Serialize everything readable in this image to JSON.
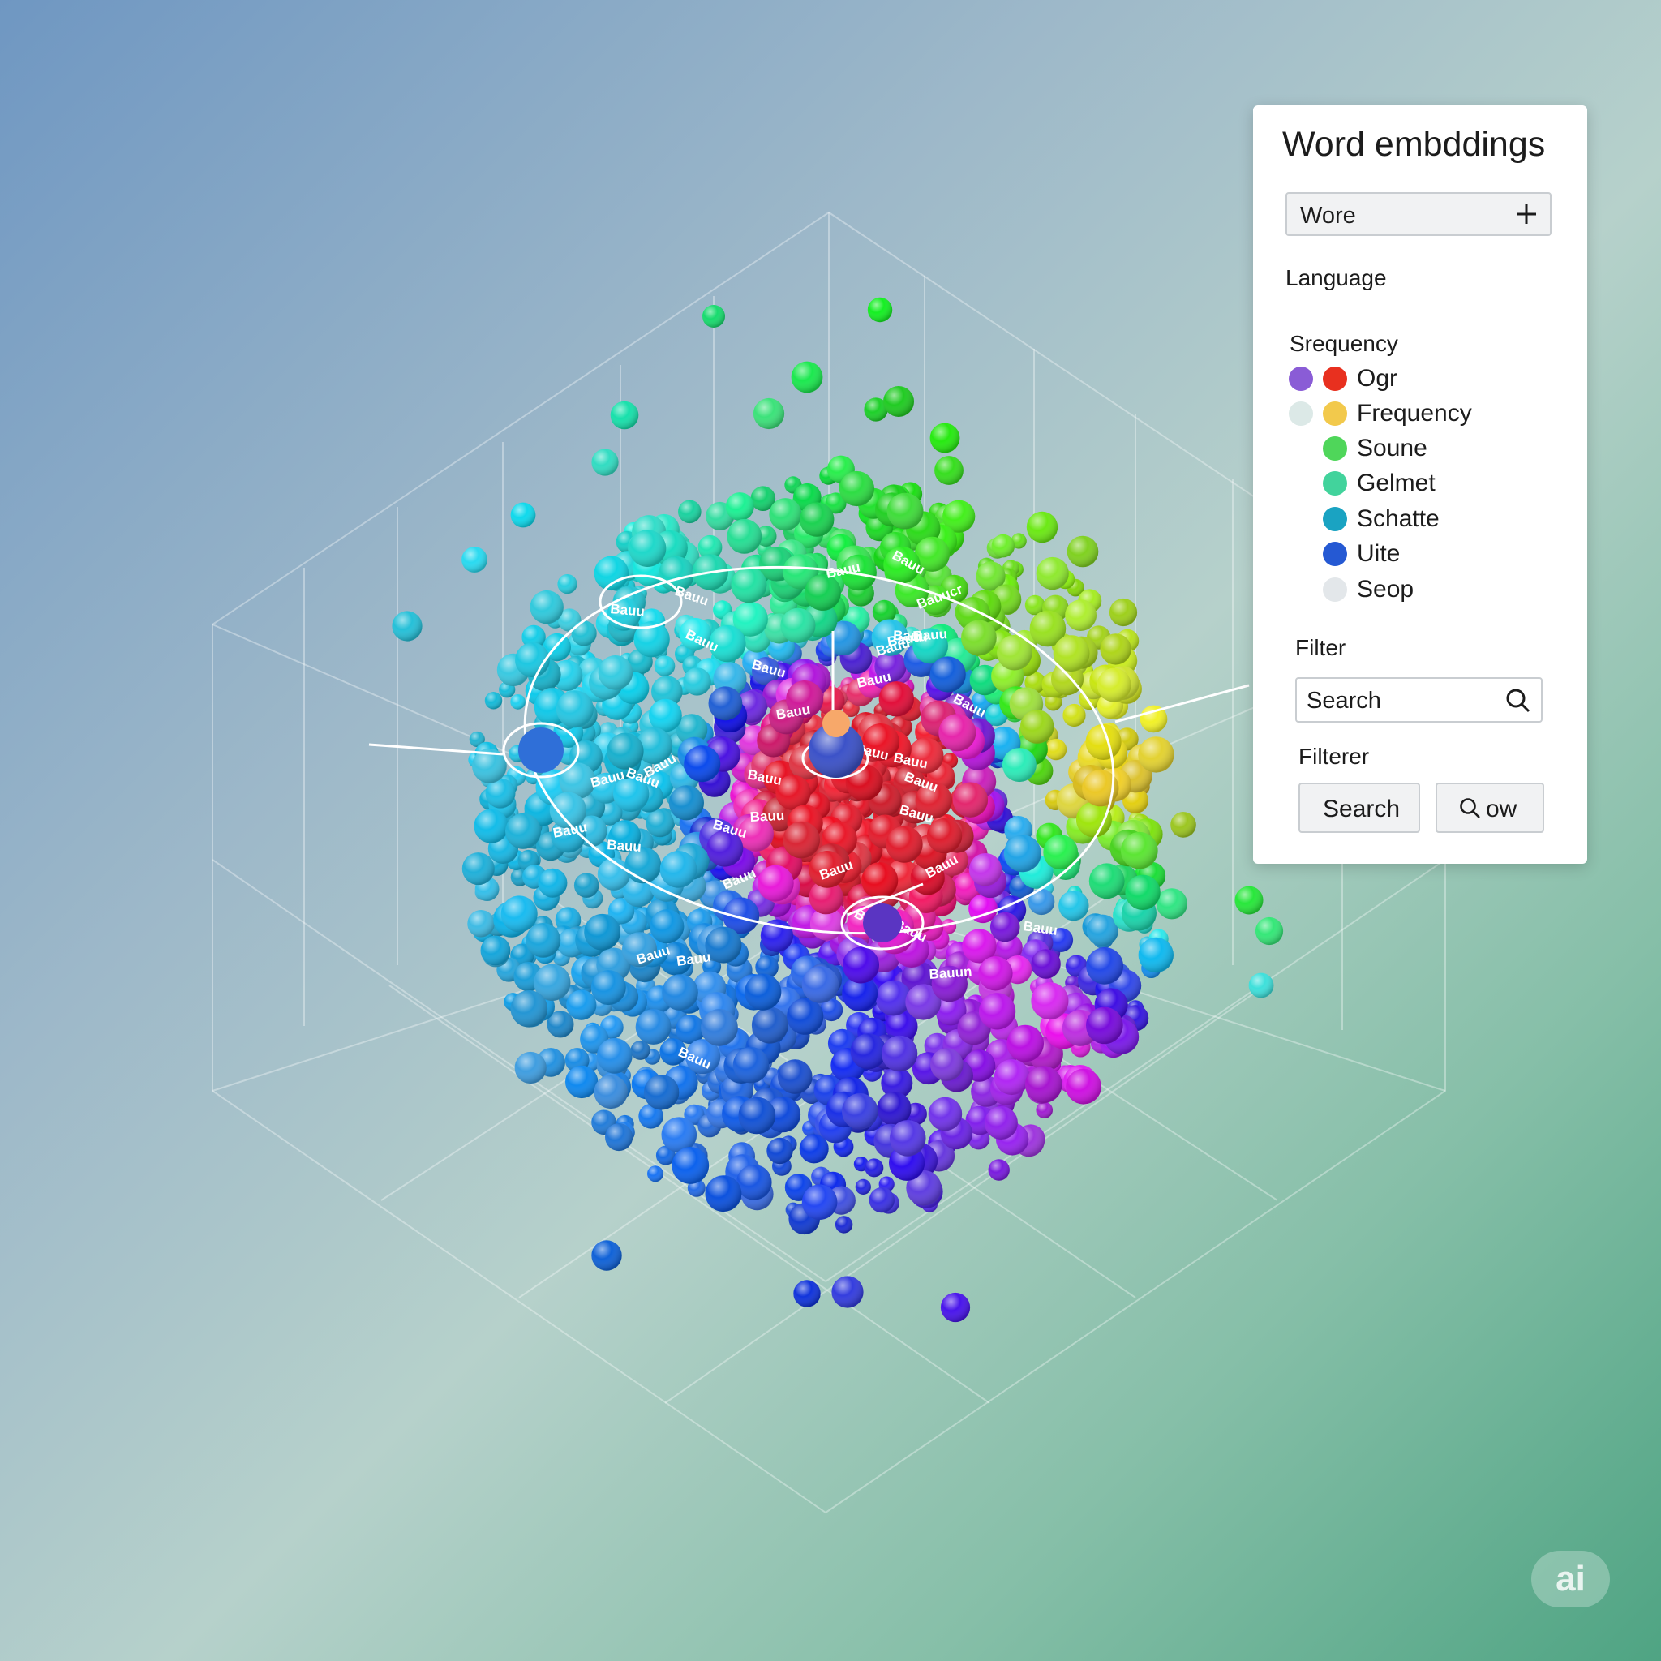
{
  "panel": {
    "title": "Word embddings",
    "word_select": {
      "value": "Wore",
      "icon": "plus-icon"
    },
    "language_label": "Language",
    "legend": {
      "heading": "Srequency",
      "items": [
        {
          "label": "Ogr",
          "colors": [
            "#8a5cd6",
            "#e8301f"
          ]
        },
        {
          "label": "Frequency",
          "colors": [
            "#dce9e7",
            "#f2c94c"
          ]
        },
        {
          "label": "Soune",
          "colors": [
            "#4fd65a"
          ]
        },
        {
          "label": "Gelmet",
          "colors": [
            "#42d39c"
          ]
        },
        {
          "label": "Schatte",
          "colors": [
            "#1aa3c2"
          ]
        },
        {
          "label": "Uite",
          "colors": [
            "#2559d3"
          ]
        },
        {
          "label": "Seop",
          "colors": [
            "#e3e7ea"
          ]
        }
      ]
    },
    "filter_label": "Filter",
    "search": {
      "placeholder": "Search",
      "icon": "search-icon"
    },
    "filterer_label": "Filterer",
    "buttons": [
      {
        "label": "Search"
      },
      {
        "label": "ow",
        "icon": "search-icon"
      }
    ]
  },
  "badge": "ai",
  "scene_word_labels": [
    "Bauu",
    "Bauun",
    "Bauucr",
    "Bauu",
    "Bauu",
    "Bauu",
    "Bauu",
    "Bauu",
    "Bauu",
    "Bauu",
    "Bauu",
    "Bauu",
    "Bauu",
    "Bauu",
    "Bauu",
    "Bauu",
    "Bauu",
    "Bauu",
    "Bauu",
    "Bauu",
    "Bauu",
    "Bauu",
    "Bauu",
    "Bauu",
    "Bauu",
    "Bauu",
    "Bauu",
    "Bauu",
    "Bauu",
    "Bauu",
    "Bauu",
    "Bauu",
    "Bauu",
    "Bauu",
    "Bauu",
    "Bauu"
  ],
  "colors": {
    "panel_bg": "#ffffff",
    "accent_green": "#4fa483",
    "accent_blue": "#6f97c2"
  }
}
